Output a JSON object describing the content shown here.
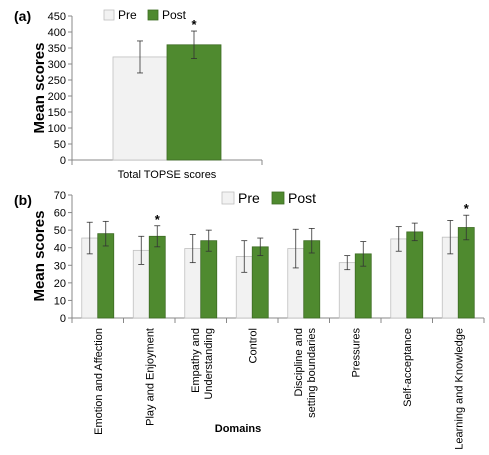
{
  "chart_data": [
    {
      "type": "bar",
      "panel_label": "(a)",
      "categories": [
        "Total TOPSE scores"
      ],
      "series": [
        {
          "name": "Pre",
          "color": "#f2f2f2",
          "values": [
            322
          ],
          "errors": [
            50
          ]
        },
        {
          "name": "Post",
          "color": "#4f8a2f",
          "values": [
            360
          ],
          "errors": [
            43
          ]
        }
      ],
      "significant": [
        true
      ],
      "significance_marker": "*",
      "title": "",
      "xlabel": "",
      "ylabel": "Mean scores",
      "ylim": [
        0,
        450
      ],
      "yticks": [
        "0",
        "50",
        "100",
        "150",
        "200",
        "250",
        "300",
        "350",
        "400",
        "450"
      ],
      "grid": false,
      "legend_position": "top-left"
    },
    {
      "type": "bar",
      "panel_label": "(b)",
      "categories": [
        "Emotion and Affection",
        "Play and Enjoyment",
        "Empathy and Understanding",
        "Control",
        "Discipline and setting boundaries",
        "Pressures",
        "Self-acceptance",
        "Learning and Knowledge"
      ],
      "series": [
        {
          "name": "Pre",
          "color": "#f2f2f2",
          "values": [
            45.5,
            38.5,
            39.5,
            35,
            39.5,
            31.5,
            45,
            46
          ],
          "errors": [
            9,
            8,
            8,
            9,
            11,
            4,
            7,
            9.5
          ]
        },
        {
          "name": "Post",
          "color": "#4f8a2f",
          "values": [
            48,
            46.5,
            44,
            40.5,
            44,
            36.5,
            49,
            51.5
          ],
          "errors": [
            7,
            6,
            6,
            5,
            7,
            7,
            5,
            7
          ]
        }
      ],
      "significant": [
        false,
        true,
        false,
        false,
        false,
        false,
        false,
        true
      ],
      "significance_marker": "*",
      "title": "",
      "xlabel": "Domains",
      "ylabel": "Mean scores",
      "ylim": [
        0,
        70
      ],
      "yticks": [
        "0",
        "10",
        "20",
        "30",
        "40",
        "50",
        "60",
        "70"
      ],
      "grid": false,
      "legend_position": "top"
    }
  ]
}
